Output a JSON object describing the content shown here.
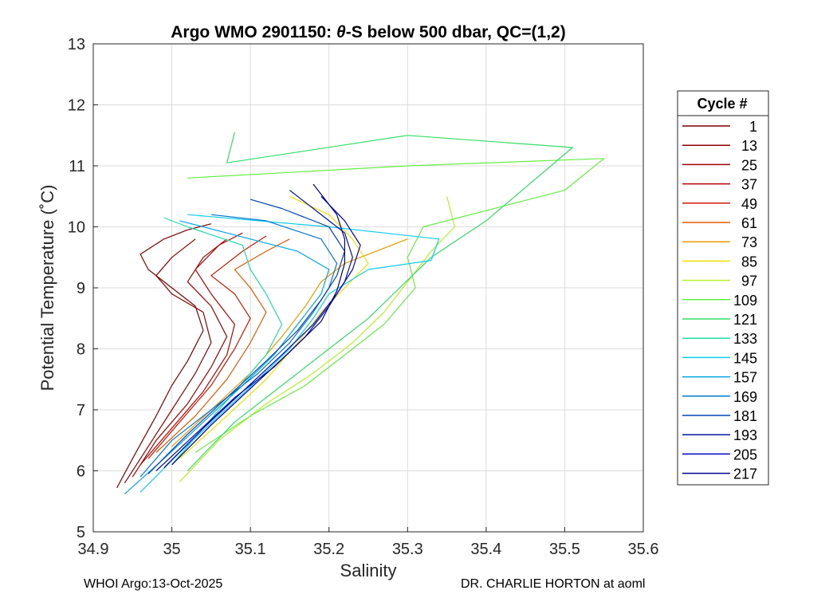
{
  "chart_data": {
    "type": "line",
    "title_parts": [
      "Argo WMO 2901150: ",
      "θ",
      "-S below 500 dbar,  QC=(1,2)"
    ],
    "xlabel": "Salinity",
    "ylabel": "Potential Temperature (˚C)",
    "xlim": [
      34.9,
      35.6
    ],
    "ylim": [
      5,
      13
    ],
    "xticks": [
      "34.9",
      "35",
      "35.1",
      "35.2",
      "35.3",
      "35.4",
      "35.5",
      "35.6"
    ],
    "yticks": [
      "5",
      "6",
      "7",
      "8",
      "9",
      "10",
      "11",
      "12",
      "13"
    ],
    "grid": true,
    "legend": {
      "title": "Cycle #",
      "placement": "right",
      "entries": [
        {
          "label": "1",
          "color": "#7f0000"
        },
        {
          "label": "13",
          "color": "#8d0000"
        },
        {
          "label": "25",
          "color": "#a00000"
        },
        {
          "label": "37",
          "color": "#b40000"
        },
        {
          "label": "49",
          "color": "#d01800"
        },
        {
          "label": "61",
          "color": "#e25a00"
        },
        {
          "label": "73",
          "color": "#eb9a00"
        },
        {
          "label": "85",
          "color": "#f0e000"
        },
        {
          "label": "97",
          "color": "#b8f02a"
        },
        {
          "label": "109",
          "color": "#66ee44"
        },
        {
          "label": "121",
          "color": "#33dd66"
        },
        {
          "label": "133",
          "color": "#22ddaa"
        },
        {
          "label": "145",
          "color": "#11ccee"
        },
        {
          "label": "157",
          "color": "#00a6e6"
        },
        {
          "label": "169",
          "color": "#0079d0"
        },
        {
          "label": "181",
          "color": "#0044b4"
        },
        {
          "label": "193",
          "color": "#0018a0"
        },
        {
          "label": "205",
          "color": "#0000c8"
        },
        {
          "label": "217",
          "color": "#00008c"
        }
      ]
    },
    "series": [
      {
        "name": "1",
        "color": "#7f0000",
        "points": [
          [
            34.93,
            5.72
          ],
          [
            34.95,
            6.2
          ],
          [
            34.98,
            6.9
          ],
          [
            35.0,
            7.4
          ],
          [
            35.02,
            7.8
          ],
          [
            35.04,
            8.3
          ],
          [
            35.03,
            8.7
          ],
          [
            35.0,
            9.0
          ],
          [
            34.97,
            9.3
          ],
          [
            34.96,
            9.55
          ],
          [
            34.99,
            9.8
          ],
          [
            35.02,
            9.95
          ],
          [
            35.05,
            10.05
          ]
        ]
      },
      {
        "name": "13",
        "color": "#8d0000",
        "points": [
          [
            34.94,
            5.8
          ],
          [
            34.97,
            6.4
          ],
          [
            35.0,
            7.0
          ],
          [
            35.03,
            7.6
          ],
          [
            35.05,
            8.1
          ],
          [
            35.04,
            8.6
          ],
          [
            35.0,
            8.9
          ],
          [
            34.98,
            9.2
          ],
          [
            35.0,
            9.5
          ],
          [
            35.03,
            9.8
          ]
        ]
      },
      {
        "name": "25",
        "color": "#a00000",
        "points": [
          [
            34.95,
            5.9
          ],
          [
            34.98,
            6.5
          ],
          [
            35.02,
            7.1
          ],
          [
            35.05,
            7.7
          ],
          [
            35.07,
            8.2
          ],
          [
            35.05,
            8.7
          ],
          [
            35.02,
            9.1
          ],
          [
            35.04,
            9.5
          ],
          [
            35.07,
            9.8
          ]
        ]
      },
      {
        "name": "37",
        "color": "#b40000",
        "points": [
          [
            34.96,
            6.1
          ],
          [
            35.0,
            6.7
          ],
          [
            35.04,
            7.3
          ],
          [
            35.07,
            7.9
          ],
          [
            35.08,
            8.4
          ],
          [
            35.05,
            8.9
          ],
          [
            35.03,
            9.3
          ],
          [
            35.06,
            9.7
          ],
          [
            35.09,
            9.9
          ]
        ]
      },
      {
        "name": "49",
        "color": "#d01800",
        "points": [
          [
            34.97,
            6.2
          ],
          [
            35.01,
            6.8
          ],
          [
            35.05,
            7.4
          ],
          [
            35.08,
            8.0
          ],
          [
            35.1,
            8.5
          ],
          [
            35.08,
            8.9
          ],
          [
            35.05,
            9.2
          ],
          [
            35.09,
            9.6
          ],
          [
            35.12,
            9.85
          ]
        ]
      },
      {
        "name": "61",
        "color": "#e25a00",
        "points": [
          [
            34.98,
            6.3
          ],
          [
            35.03,
            6.9
          ],
          [
            35.07,
            7.5
          ],
          [
            35.1,
            8.1
          ],
          [
            35.12,
            8.6
          ],
          [
            35.1,
            9.0
          ],
          [
            35.08,
            9.3
          ],
          [
            35.12,
            9.6
          ],
          [
            35.15,
            9.8
          ]
        ]
      },
      {
        "name": "73",
        "color": "#eb9a00",
        "points": [
          [
            35.0,
            6.4
          ],
          [
            35.05,
            7.0
          ],
          [
            35.1,
            7.6
          ],
          [
            35.14,
            8.2
          ],
          [
            35.17,
            8.7
          ],
          [
            35.19,
            9.1
          ],
          [
            35.22,
            9.4
          ],
          [
            35.26,
            9.6
          ],
          [
            35.3,
            9.8
          ]
        ]
      },
      {
        "name": "85",
        "color": "#f0e000",
        "points": [
          [
            35.01,
            6.2
          ],
          [
            35.07,
            6.9
          ],
          [
            35.12,
            7.5
          ],
          [
            35.16,
            8.1
          ],
          [
            35.19,
            8.6
          ],
          [
            35.22,
            9.0
          ],
          [
            35.25,
            9.4
          ],
          [
            35.23,
            9.8
          ],
          [
            35.2,
            10.2
          ],
          [
            35.15,
            10.5
          ]
        ]
      },
      {
        "name": "97",
        "color": "#b8f02a",
        "points": [
          [
            35.01,
            5.82
          ],
          [
            35.06,
            6.5
          ],
          [
            35.12,
            7.1
          ],
          [
            35.18,
            7.6
          ],
          [
            35.23,
            8.1
          ],
          [
            35.27,
            8.6
          ],
          [
            35.3,
            9.1
          ],
          [
            35.33,
            9.6
          ],
          [
            35.36,
            10.0
          ],
          [
            35.35,
            10.5
          ]
        ]
      },
      {
        "name": "109",
        "color": "#66ee44",
        "points": [
          [
            35.03,
            6.3
          ],
          [
            35.1,
            6.9
          ],
          [
            35.17,
            7.4
          ],
          [
            35.22,
            7.9
          ],
          [
            35.27,
            8.4
          ],
          [
            35.31,
            9.0
          ],
          [
            35.3,
            9.5
          ],
          [
            35.32,
            10.0
          ],
          [
            35.5,
            10.6
          ],
          [
            35.55,
            11.12
          ],
          [
            35.3,
            11.0
          ],
          [
            35.02,
            10.8
          ]
        ]
      },
      {
        "name": "121",
        "color": "#33dd66",
        "points": [
          [
            35.02,
            6.0
          ],
          [
            35.08,
            6.8
          ],
          [
            35.14,
            7.4
          ],
          [
            35.2,
            8.0
          ],
          [
            35.25,
            8.5
          ],
          [
            35.29,
            9.0
          ],
          [
            35.33,
            9.5
          ],
          [
            35.4,
            10.1
          ],
          [
            35.51,
            11.3
          ],
          [
            35.3,
            11.5
          ],
          [
            35.07,
            11.05
          ],
          [
            35.08,
            11.55
          ]
        ]
      },
      {
        "name": "133",
        "color": "#22ddaa",
        "points": [
          [
            35.0,
            6.1
          ],
          [
            35.04,
            6.7
          ],
          [
            35.08,
            7.3
          ],
          [
            35.12,
            7.9
          ],
          [
            35.14,
            8.4
          ],
          [
            35.12,
            8.9
          ],
          [
            35.1,
            9.3
          ],
          [
            35.09,
            9.7
          ],
          [
            35.02,
            10.0
          ],
          [
            34.99,
            10.15
          ]
        ]
      },
      {
        "name": "145",
        "color": "#11ccee",
        "points": [
          [
            34.96,
            5.65
          ],
          [
            35.01,
            6.3
          ],
          [
            35.06,
            6.9
          ],
          [
            35.11,
            7.5
          ],
          [
            35.15,
            8.0
          ],
          [
            35.18,
            8.5
          ],
          [
            35.2,
            8.9
          ],
          [
            35.25,
            9.3
          ],
          [
            35.33,
            9.45
          ],
          [
            35.34,
            9.8
          ],
          [
            35.2,
            10.0
          ],
          [
            35.02,
            10.2
          ]
        ]
      },
      {
        "name": "157",
        "color": "#00a6e6",
        "points": [
          [
            34.94,
            5.62
          ],
          [
            34.99,
            6.2
          ],
          [
            35.04,
            6.8
          ],
          [
            35.09,
            7.4
          ],
          [
            35.13,
            7.9
          ],
          [
            35.16,
            8.4
          ],
          [
            35.19,
            8.9
          ],
          [
            35.2,
            9.3
          ],
          [
            35.16,
            9.6
          ],
          [
            35.1,
            9.8
          ],
          [
            35.01,
            10.1
          ]
        ]
      },
      {
        "name": "169",
        "color": "#0079d0",
        "points": [
          [
            34.96,
            5.9
          ],
          [
            35.0,
            6.5
          ],
          [
            35.06,
            7.1
          ],
          [
            35.11,
            7.6
          ],
          [
            35.15,
            8.1
          ],
          [
            35.18,
            8.6
          ],
          [
            35.2,
            9.0
          ],
          [
            35.21,
            9.4
          ],
          [
            35.19,
            9.8
          ],
          [
            35.12,
            10.1
          ],
          [
            35.05,
            10.2
          ]
        ]
      },
      {
        "name": "181",
        "color": "#0044b4",
        "points": [
          [
            34.97,
            5.95
          ],
          [
            35.02,
            6.6
          ],
          [
            35.07,
            7.2
          ],
          [
            35.12,
            7.8
          ],
          [
            35.16,
            8.3
          ],
          [
            35.19,
            8.8
          ],
          [
            35.21,
            9.2
          ],
          [
            35.22,
            9.6
          ],
          [
            35.2,
            10.0
          ],
          [
            35.14,
            10.3
          ],
          [
            35.1,
            10.45
          ]
        ]
      },
      {
        "name": "193",
        "color": "#0018a0",
        "points": [
          [
            34.98,
            6.0
          ],
          [
            35.03,
            6.6
          ],
          [
            35.08,
            7.2
          ],
          [
            35.13,
            7.7
          ],
          [
            35.17,
            8.2
          ],
          [
            35.2,
            8.7
          ],
          [
            35.22,
            9.1
          ],
          [
            35.23,
            9.5
          ],
          [
            35.22,
            9.9
          ],
          [
            35.18,
            10.3
          ],
          [
            35.15,
            10.6
          ]
        ]
      },
      {
        "name": "205",
        "color": "#0000c8",
        "points": [
          [
            34.99,
            6.05
          ],
          [
            35.04,
            6.7
          ],
          [
            35.09,
            7.3
          ],
          [
            35.14,
            7.9
          ],
          [
            35.18,
            8.4
          ],
          [
            35.21,
            8.9
          ],
          [
            35.23,
            9.3
          ],
          [
            35.24,
            9.7
          ],
          [
            35.22,
            10.1
          ],
          [
            35.19,
            10.5
          ]
        ]
      },
      {
        "name": "217",
        "color": "#00008c",
        "points": [
          [
            35.0,
            6.1
          ],
          [
            35.05,
            6.75
          ],
          [
            35.1,
            7.35
          ],
          [
            35.15,
            7.95
          ],
          [
            35.19,
            8.45
          ],
          [
            35.21,
            8.95
          ],
          [
            35.22,
            9.4
          ],
          [
            35.22,
            9.8
          ],
          [
            35.21,
            10.2
          ],
          [
            35.18,
            10.7
          ]
        ]
      }
    ]
  },
  "footer": {
    "left": "WHOI Argo:13-Oct-2025",
    "right": "DR. CHARLIE HORTON at aoml"
  }
}
